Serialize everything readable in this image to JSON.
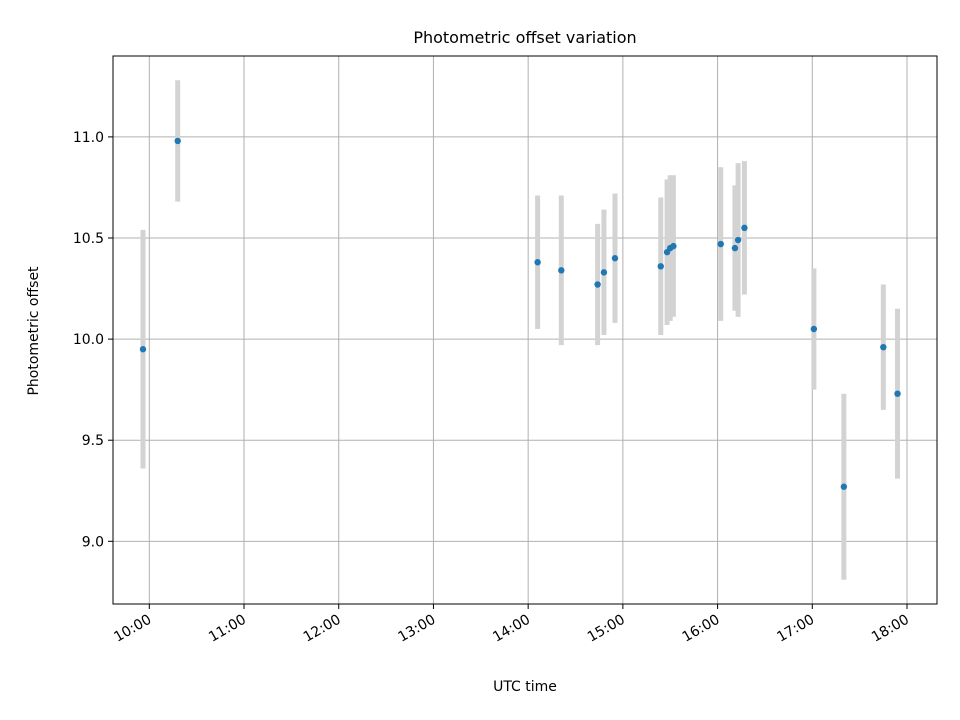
{
  "chart_data": {
    "type": "scatter",
    "title": "Photometric offset variation",
    "xlabel": "UTC time",
    "ylabel": "Photometric offset",
    "x_ticks": [
      "10:00",
      "11:00",
      "12:00",
      "13:00",
      "14:00",
      "15:00",
      "16:00",
      "17:00",
      "18:00"
    ],
    "y_ticks": [
      "9.0",
      "9.5",
      "10.0",
      "10.5",
      "11.0"
    ],
    "xlim": [
      "09:37",
      "18:19"
    ],
    "ylim": [
      8.69,
      11.4
    ],
    "grid": true,
    "series": [
      {
        "marker_color": "#1f77b4",
        "errorbar_color": "#d3d3d3",
        "points": [
          {
            "x": "09:56",
            "y": 9.95,
            "yerr": 0.59
          },
          {
            "x": "10:18",
            "y": 10.98,
            "yerr": 0.3
          },
          {
            "x": "14:06",
            "y": 10.38,
            "yerr": 0.33
          },
          {
            "x": "14:21",
            "y": 10.34,
            "yerr": 0.37
          },
          {
            "x": "14:44",
            "y": 10.27,
            "yerr": 0.3
          },
          {
            "x": "14:48",
            "y": 10.33,
            "yerr": 0.31
          },
          {
            "x": "14:55",
            "y": 10.4,
            "yerr": 0.32
          },
          {
            "x": "15:24",
            "y": 10.36,
            "yerr": 0.34
          },
          {
            "x": "15:28",
            "y": 10.43,
            "yerr": 0.36
          },
          {
            "x": "15:30",
            "y": 10.45,
            "yerr": 0.36
          },
          {
            "x": "15:32",
            "y": 10.46,
            "yerr": 0.35
          },
          {
            "x": "16:02",
            "y": 10.47,
            "yerr": 0.38
          },
          {
            "x": "16:11",
            "y": 10.45,
            "yerr": 0.31
          },
          {
            "x": "16:13",
            "y": 10.49,
            "yerr": 0.38
          },
          {
            "x": "16:17",
            "y": 10.55,
            "yerr": 0.33
          },
          {
            "x": "17:01",
            "y": 10.05,
            "yerr": 0.3
          },
          {
            "x": "17:20",
            "y": 9.27,
            "yerr": 0.46
          },
          {
            "x": "17:45",
            "y": 9.96,
            "yerr": 0.31
          },
          {
            "x": "17:54",
            "y": 9.73,
            "yerr": 0.42
          }
        ]
      }
    ]
  }
}
